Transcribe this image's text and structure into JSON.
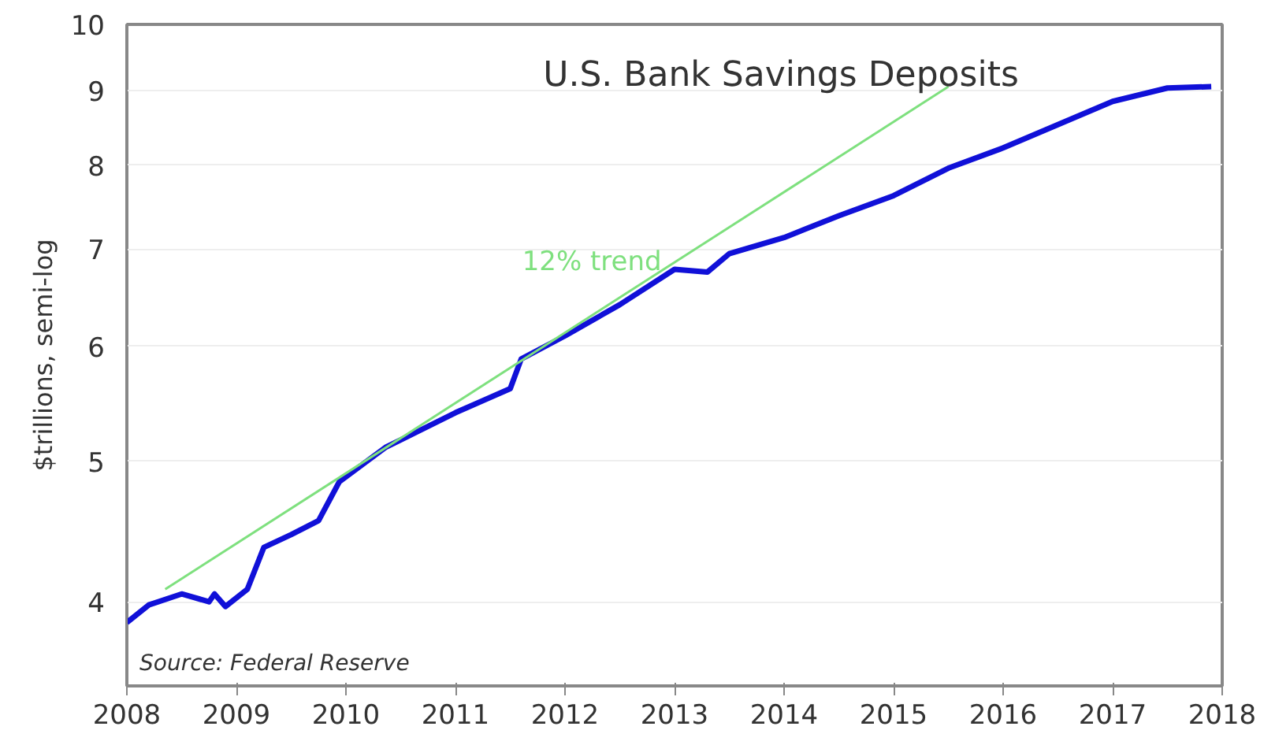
{
  "chart_data": {
    "type": "line",
    "title": "U.S. Bank Savings Deposits",
    "ylabel": "$trillions, semi-log",
    "annotations": [
      "Source: Federal Reserve"
    ],
    "log": "y",
    "grid": "y",
    "xlim": [
      2008,
      2018
    ],
    "ylim": [
      3.5,
      10
    ],
    "xticks": [
      2008,
      2009,
      2010,
      2011,
      2012,
      2013,
      2014,
      2015,
      2016,
      2017,
      2018
    ],
    "yticks": [
      4,
      5,
      6,
      7,
      8,
      9,
      10
    ],
    "series": [
      {
        "color": "#1010d8",
        "x": [
          2008.0,
          2008.2,
          2008.5,
          2008.75,
          2008.8,
          2008.9,
          2009.1,
          2009.25,
          2009.5,
          2009.75,
          2009.94,
          2010.36,
          2011.0,
          2011.5,
          2011.6,
          2012.0,
          2012.5,
          2013.0,
          2013.3,
          2013.5,
          2014.0,
          2014.5,
          2015.0,
          2015.5,
          2016.0,
          2016.5,
          2017.0,
          2017.5,
          2017.9
        ],
        "values": [
          3.87,
          3.98,
          4.05,
          4.0,
          4.05,
          3.97,
          4.08,
          4.36,
          4.45,
          4.55,
          4.84,
          5.11,
          5.4,
          5.61,
          5.88,
          6.1,
          6.41,
          6.78,
          6.75,
          6.95,
          7.13,
          7.38,
          7.62,
          7.96,
          8.22,
          8.53,
          8.85,
          9.04,
          9.06
        ]
      },
      {
        "name": "12% trend",
        "color": "#7ee07e",
        "x": [
          2008.35,
          2015.5
        ],
        "values": [
          4.08,
          9.06
        ]
      }
    ]
  }
}
